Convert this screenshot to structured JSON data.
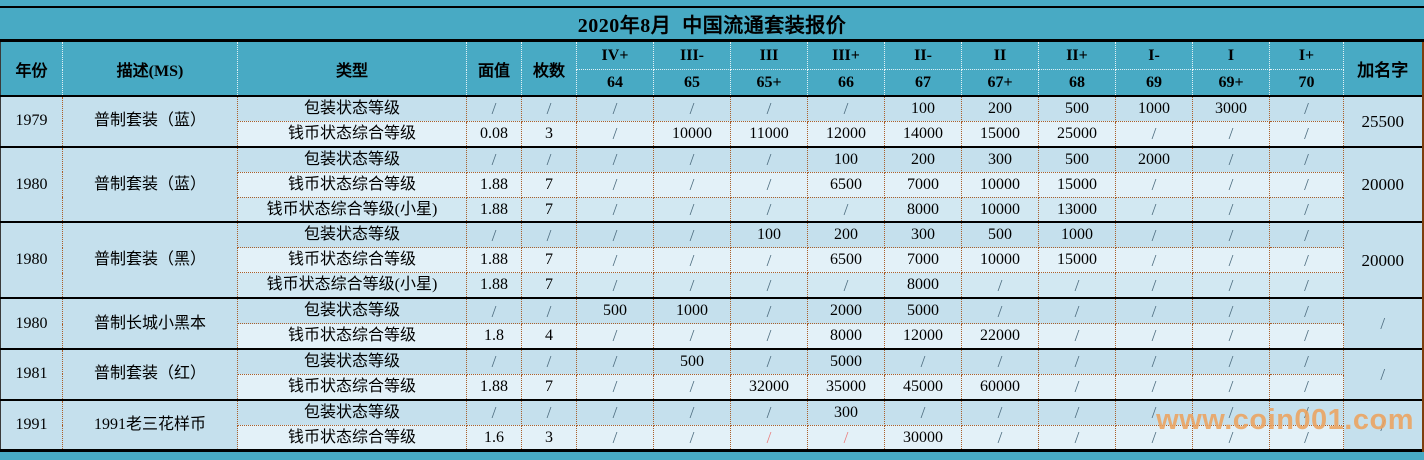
{
  "title": "2020年8月  中国流通套装报价",
  "watermark": "www.coin001.com",
  "colors": {
    "teal": "#48aac4",
    "row_dark": "#c5e0ed",
    "row_light": "#e3f1f8",
    "row_medium": "#d2e8f2",
    "dotted_border": "#aa5f2b",
    "slash_gray": "#4f6e80",
    "slash_red": "#ea8080",
    "watermark_orange": "#eca35f",
    "right_border_brown": "#7d3f10"
  },
  "header": {
    "year": "年份",
    "desc": "描述(MS)",
    "type": "类型",
    "face_value": "面值",
    "count": "枚数",
    "add_name": "加名字",
    "grades": [
      {
        "grade": "IV+",
        "num": "64"
      },
      {
        "grade": "III-",
        "num": "65"
      },
      {
        "grade": "III",
        "num": "65+"
      },
      {
        "grade": "III+",
        "num": "66"
      },
      {
        "grade": "II-",
        "num": "67"
      },
      {
        "grade": "II",
        "num": "67+"
      },
      {
        "grade": "II+",
        "num": "68"
      },
      {
        "grade": "I-",
        "num": "69"
      },
      {
        "grade": "I",
        "num": "69+"
      },
      {
        "grade": "I+",
        "num": "70"
      }
    ]
  },
  "groups": [
    {
      "year": "1979",
      "desc": "普制套装（蓝）",
      "add_name": "25500",
      "rows": [
        {
          "type": "包装状态等级",
          "face": "/",
          "count": "/",
          "grades": [
            "/",
            "/",
            "/",
            "/",
            "100",
            "200",
            "500",
            "1000",
            "3000",
            "/"
          ]
        },
        {
          "type": "钱币状态综合等级",
          "face": "0.08",
          "count": "3",
          "grades": [
            "/",
            "10000",
            "11000",
            "12000",
            "14000",
            "15000",
            "25000",
            "/",
            "/",
            "/"
          ]
        }
      ]
    },
    {
      "year": "1980",
      "desc": "普制套装（蓝）",
      "add_name": "20000",
      "rows": [
        {
          "type": "包装状态等级",
          "face": "/",
          "count": "/",
          "grades": [
            "/",
            "/",
            "/",
            "100",
            "200",
            "300",
            "500",
            "2000",
            "/",
            "/"
          ]
        },
        {
          "type": "钱币状态综合等级",
          "face": "1.88",
          "count": "7",
          "grades": [
            "/",
            "/",
            "/",
            "6500",
            "7000",
            "10000",
            "15000",
            "/",
            "/",
            "/"
          ]
        },
        {
          "type": "钱币状态综合等级(小星)",
          "face": "1.88",
          "count": "7",
          "grades": [
            "/",
            "/",
            "/",
            "/",
            "8000",
            "10000",
            "13000",
            "/",
            "/",
            "/"
          ]
        }
      ]
    },
    {
      "year": "1980",
      "desc": "普制套装（黑）",
      "add_name": "20000",
      "rows": [
        {
          "type": "包装状态等级",
          "face": "/",
          "count": "/",
          "grades": [
            "/",
            "/",
            "100",
            "200",
            "300",
            "500",
            "1000",
            "/",
            "/",
            "/"
          ]
        },
        {
          "type": "钱币状态综合等级",
          "face": "1.88",
          "count": "7",
          "grades": [
            "/",
            "/",
            "/",
            "6500",
            "7000",
            "10000",
            "15000",
            "/",
            "/",
            "/"
          ]
        },
        {
          "type": "钱币状态综合等级(小星)",
          "face": "1.88",
          "count": "7",
          "grades": [
            "/",
            "/",
            "/",
            "/",
            "8000",
            "/",
            "/",
            "/",
            "/",
            "/"
          ]
        }
      ]
    },
    {
      "year": "1980",
      "desc": "普制长城小黑本",
      "add_name": "/",
      "rows": [
        {
          "type": "包装状态等级",
          "face": "/",
          "count": "/",
          "grades": [
            "500",
            "1000",
            "/",
            "2000",
            "5000",
            "/",
            "/",
            "/",
            "/",
            "/"
          ]
        },
        {
          "type": "钱币状态综合等级",
          "face": "1.8",
          "count": "4",
          "grades": [
            "/",
            "/",
            "/",
            "8000",
            "12000",
            "22000",
            "/",
            "/",
            "/",
            "/"
          ]
        }
      ]
    },
    {
      "year": "1981",
      "desc": "普制套装（红）",
      "add_name": "/",
      "rows": [
        {
          "type": "包装状态等级",
          "face": "/",
          "count": "/",
          "grades": [
            "/",
            "500",
            "/",
            "5000",
            "/",
            "/",
            "/",
            "/",
            "/",
            "/"
          ]
        },
        {
          "type": "钱币状态综合等级",
          "face": "1.88",
          "count": "7",
          "grades": [
            "/",
            "/",
            "32000",
            "35000",
            "45000",
            "60000",
            "/",
            "/",
            "/",
            "/"
          ]
        }
      ]
    },
    {
      "year": "1991",
      "desc": "1991老三花样币",
      "add_name": "/",
      "rows": [
        {
          "type": "包装状态等级",
          "face": "/",
          "count": "/",
          "grades": [
            "/",
            "/",
            "/",
            "300",
            "/",
            "/",
            "/",
            "/",
            "/",
            "/"
          ]
        },
        {
          "type": "钱币状态综合等级",
          "face": "1.6",
          "count": "3",
          "grades": [
            "/",
            "/",
            "/",
            "/",
            "30000",
            "/",
            "/",
            "/",
            "/",
            "/"
          ],
          "red_grades": [
            2,
            3
          ]
        }
      ]
    }
  ]
}
